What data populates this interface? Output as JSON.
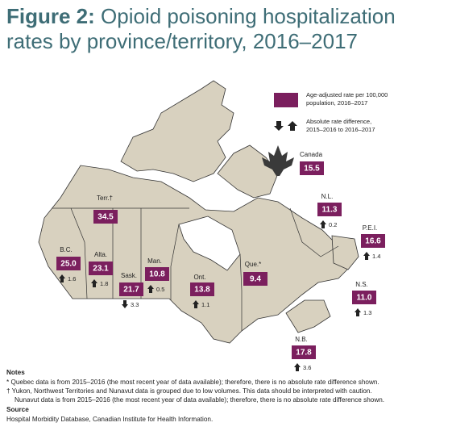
{
  "header": {
    "figure_label": "Figure 2:",
    "title_line1": "Opioid poisoning hospitalization",
    "title_line2": "rates by province/territory, 2016–2017"
  },
  "legend": {
    "rate": [
      "Age-adjusted rate per 100,000",
      "population, 2016–2017"
    ],
    "difference": [
      "Absolute rate difference,",
      "2015–2016 to 2016–2017"
    ]
  },
  "canada": {
    "name": "Canada",
    "rate": "15.5"
  },
  "regions": [
    {
      "name": "Terr.†",
      "rate": "34.5"
    },
    {
      "name": "B.C.",
      "rate": "25.0",
      "difference": "1.6",
      "direction": "up"
    },
    {
      "name": "Alta.",
      "rate": "23.1",
      "difference": "1.8",
      "direction": "up"
    },
    {
      "name": "Sask.",
      "rate": "21.7",
      "difference": "3.3",
      "direction": "down"
    },
    {
      "name": "Man.",
      "rate": "10.8",
      "difference": "0.5",
      "direction": "up"
    },
    {
      "name": "Ont.",
      "rate": "13.8",
      "difference": "1.1",
      "direction": "up"
    },
    {
      "name": "Que.*",
      "rate": "9.4"
    },
    {
      "name": "N.L.",
      "rate": "11.3",
      "difference": "0.2",
      "direction": "up"
    },
    {
      "name": "P.E.I.",
      "rate": "16.6",
      "difference": "1.4",
      "direction": "up"
    },
    {
      "name": "N.S.",
      "rate": "11.0",
      "difference": "1.3",
      "direction": "up"
    },
    {
      "name": "N.B.",
      "rate": "17.8",
      "difference": "3.6",
      "direction": "up"
    }
  ],
  "notes": {
    "heading": "Notes",
    "lines": [
      "* Quebec data is from 2015–2016 (the most recent year of data available); therefore, there is no absolute rate difference shown.",
      "† Yukon, Northwest Territories and Nunavut data is grouped due to low volumes. This data should be interpreted with caution.",
      "Nunavut data is from 2015–2016 (the most recent year of data available); therefore, there is no absolute rate difference shown."
    ],
    "source_heading": "Source",
    "source": "Hospital Morbidity Database, Canadian Institute for Health Information."
  }
}
